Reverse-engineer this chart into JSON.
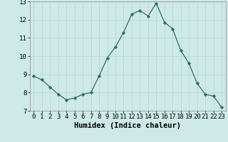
{
  "x": [
    0,
    1,
    2,
    3,
    4,
    5,
    6,
    7,
    8,
    9,
    10,
    11,
    12,
    13,
    14,
    15,
    16,
    17,
    18,
    19,
    20,
    21,
    22,
    23
  ],
  "y": [
    8.9,
    8.7,
    8.3,
    7.9,
    7.6,
    7.7,
    7.9,
    8.0,
    8.9,
    9.9,
    10.5,
    11.3,
    12.3,
    12.5,
    12.2,
    12.9,
    11.85,
    11.5,
    10.3,
    9.6,
    8.5,
    7.9,
    7.8,
    7.2
  ],
  "line_color": "#2e6e5e",
  "marker": "D",
  "marker_size": 2.2,
  "bg_color": "#ceeae7",
  "grid_color": "#b8d8d4",
  "xlabel": "Humidex (Indice chaleur)",
  "xlabel_fontsize": 7.5,
  "tick_fontsize": 6.5,
  "ylim": [
    7,
    13
  ],
  "xlim": [
    -0.5,
    23.5
  ],
  "yticks": [
    7,
    8,
    9,
    10,
    11,
    12,
    13
  ],
  "xticks": [
    0,
    1,
    2,
    3,
    4,
    5,
    6,
    7,
    8,
    9,
    10,
    11,
    12,
    13,
    14,
    15,
    16,
    17,
    18,
    19,
    20,
    21,
    22,
    23
  ]
}
